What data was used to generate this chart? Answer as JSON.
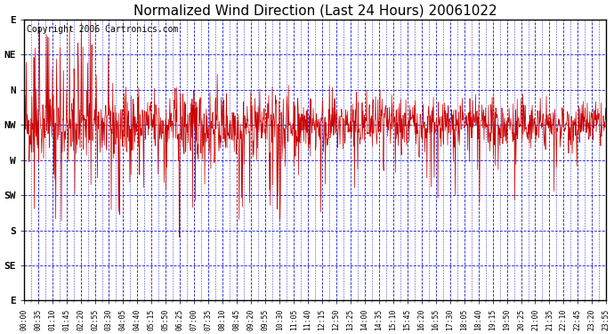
{
  "title": "Normalized Wind Direction (Last 24 Hours) 20061022",
  "copyright": "Copyright 2006 Cartronics.com",
  "background_color": "#ffffff",
  "plot_bg_color": "#ffffff",
  "line_color": "#cc0000",
  "grid_color": "#0000cc",
  "border_color": "#000000",
  "y_labels_top_to_bottom": [
    "E",
    "NE",
    "N",
    "NW",
    "W",
    "SW",
    "S",
    "SE",
    "E"
  ],
  "y_ticks_top_to_bottom": [
    8,
    7,
    6,
    5,
    4,
    3,
    2,
    1,
    0
  ],
  "x_tick_labels": [
    "00:00",
    "00:35",
    "01:10",
    "01:45",
    "02:20",
    "02:55",
    "03:30",
    "04:05",
    "04:40",
    "05:15",
    "05:50",
    "06:25",
    "07:00",
    "07:35",
    "08:10",
    "08:45",
    "09:20",
    "09:55",
    "10:30",
    "11:05",
    "11:40",
    "12:15",
    "12:50",
    "13:25",
    "14:00",
    "14:35",
    "15:10",
    "15:45",
    "16:20",
    "16:55",
    "17:30",
    "18:05",
    "18:40",
    "19:15",
    "19:50",
    "20:25",
    "21:00",
    "21:35",
    "22:10",
    "22:45",
    "23:20",
    "23:55"
  ],
  "num_points": 1440,
  "seed": 42,
  "nw_level": 5,
  "title_fontsize": 11,
  "axis_label_fontsize": 8,
  "copyright_fontsize": 7
}
